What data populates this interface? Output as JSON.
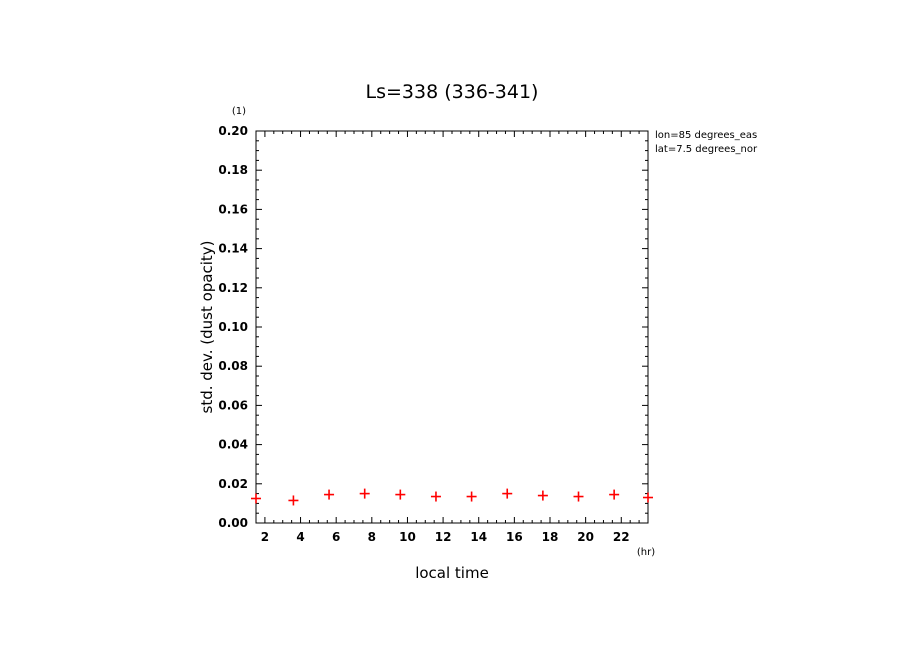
{
  "chart_data": {
    "type": "scatter",
    "title": "Ls=338 (336-341)",
    "xlabel": "local time",
    "ylabel": "std. dev. (dust opacity)",
    "x_unit": "(hr)",
    "y_unit": "(1)",
    "xlim": [
      1.5,
      23.5
    ],
    "ylim": [
      0,
      0.2
    ],
    "x_ticks": [
      "2",
      "4",
      "6",
      "8",
      "10",
      "12",
      "14",
      "16",
      "18",
      "20",
      "22"
    ],
    "y_ticks": [
      "0.00",
      "0.02",
      "0.04",
      "0.06",
      "0.08",
      "0.10",
      "0.12",
      "0.14",
      "0.16",
      "0.18",
      "0.20"
    ],
    "annotations": [
      "lon=85 degrees_eas",
      "lat=7.5 degrees_nor"
    ],
    "series": [
      {
        "color": "#ff0000",
        "marker": "plus",
        "x": [
          1.5,
          3.6,
          5.6,
          7.6,
          9.6,
          11.6,
          13.6,
          15.6,
          17.6,
          19.6,
          21.6,
          23.5
        ],
        "y": [
          0.0125,
          0.0115,
          0.0145,
          0.015,
          0.0145,
          0.0135,
          0.0135,
          0.015,
          0.014,
          0.0135,
          0.0145,
          0.013
        ]
      }
    ],
    "grid": false
  }
}
